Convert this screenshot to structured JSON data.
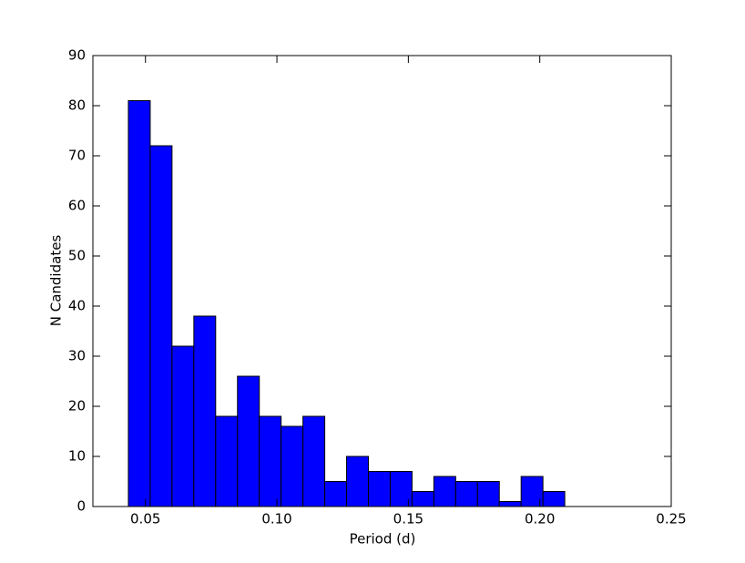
{
  "chart_data": {
    "type": "histogram",
    "xlabel": "Period (d)",
    "ylabel": "N Candidates",
    "bins": [
      0.0435,
      0.0518,
      0.0601,
      0.0684,
      0.0767,
      0.085,
      0.0933,
      0.1016,
      0.1099,
      0.1182,
      0.1265,
      0.1348,
      0.1431,
      0.1514,
      0.1597,
      0.168,
      0.1763,
      0.1846,
      0.1929,
      0.2012,
      0.2095
    ],
    "values": [
      81,
      72,
      32,
      38,
      18,
      26,
      18,
      16,
      18,
      5,
      10,
      7,
      7,
      3,
      6,
      5,
      5,
      1,
      6,
      3
    ],
    "color": "#0000ff",
    "xlim": [
      0.03,
      0.25
    ],
    "xticks": [
      0.05,
      {
        "value": 0.1,
        "label": "0.10"
      },
      0.15,
      {
        "value": 0.2,
        "label": "0.20"
      },
      0.25
    ],
    "ylim": [
      0,
      90
    ],
    "yticks": [
      0,
      10,
      20,
      30,
      40,
      50,
      60,
      70,
      80,
      90
    ]
  }
}
